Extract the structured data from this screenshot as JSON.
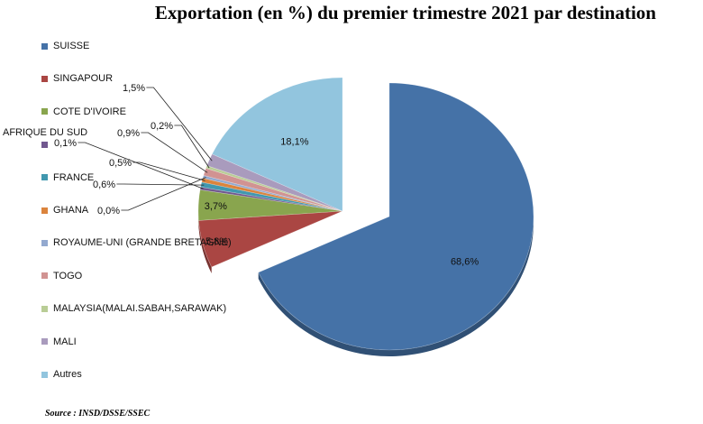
{
  "chart_data": {
    "type": "pie",
    "title": "Exportation (en %) du premier trimestre 2021 par destination",
    "slices": [
      {
        "name": "SUISSE",
        "value": 68.6,
        "label": "68,6%",
        "color": "#4572A7",
        "exploded": false
      },
      {
        "name": "SINGAPOUR",
        "value": 5.8,
        "label": "5,8%",
        "color": "#AA4643",
        "exploded": true
      },
      {
        "name": "COTE D'IVOIRE",
        "value": 3.7,
        "label": "3,7%",
        "color": "#89A54E",
        "exploded": true
      },
      {
        "name": "AFRIQUE DU SUD",
        "value": 0.1,
        "label": "0,1%",
        "color": "#71588F",
        "exploded": true
      },
      {
        "name": "FRANCE",
        "value": 0.6,
        "label": "0,6%",
        "color": "#4198AF",
        "exploded": true
      },
      {
        "name": "GHANA",
        "value": 0.5,
        "label": "0,5%",
        "color": "#DB843D",
        "exploded": true
      },
      {
        "name": "ROYAUME-UNI (GRANDE BRETAGNE)",
        "value": 0.0,
        "label": "0,0%",
        "color": "#93A9CF",
        "exploded": true
      },
      {
        "name": "TOGO",
        "value": 0.9,
        "label": "0,9%",
        "color": "#D19392",
        "exploded": true
      },
      {
        "name": "MALAYSIA(MALAI.SABAH,SARAWAK)",
        "value": 0.2,
        "label": "0,2%",
        "color": "#B9CD96",
        "exploded": true
      },
      {
        "name": "MALI",
        "value": 1.5,
        "label": "1,5%",
        "color": "#A99BBD",
        "exploded": true
      },
      {
        "name": "Autres",
        "value": 18.1,
        "label": "18,1%",
        "color": "#92C5DE",
        "exploded": true
      }
    ],
    "legend_position": "left"
  },
  "source_note": "Source : INSD/DSSE/SSEC"
}
